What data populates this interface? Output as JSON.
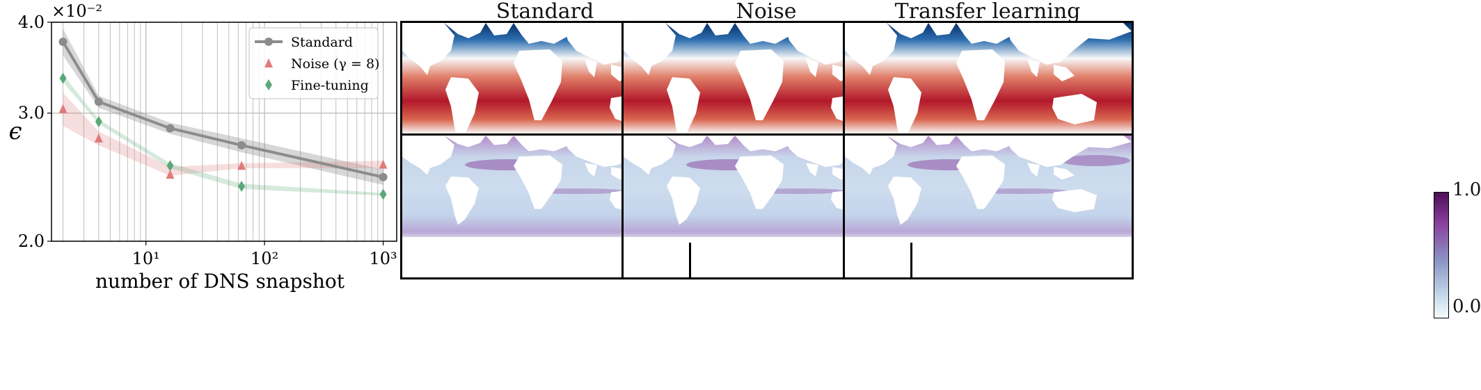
{
  "chart_data": {
    "type": "line",
    "xscale": "log",
    "yscale": "log",
    "xlim": [
      1.6,
      1300
    ],
    "ylim": [
      0.02,
      0.04
    ],
    "xlabel": "number of DNS snapshot",
    "ylabel": "ϵ",
    "y_multiplier_label": "×10⁻²",
    "yticks": [
      {
        "value": 0.02,
        "label": "2.0"
      },
      {
        "value": 0.03,
        "label": "3.0"
      },
      {
        "value": 0.04,
        "label": "4.0"
      }
    ],
    "xticks": [
      {
        "value": 10,
        "label": "10¹"
      },
      {
        "value": 100,
        "label": "10²"
      },
      {
        "value": 1000,
        "label": "10³"
      }
    ],
    "grid": true,
    "legend_position": "top-right",
    "series": [
      {
        "name": "Standard",
        "marker": "circle",
        "color": "#8c8c8c",
        "x": [
          2,
          4,
          16,
          64,
          1000
        ],
        "y": [
          0.0376,
          0.0311,
          0.0286,
          0.0271,
          0.0245
        ],
        "band_low": [
          0.036,
          0.0305,
          0.0281,
          0.0265,
          0.0239
        ],
        "band_high": [
          0.0392,
          0.0317,
          0.0291,
          0.0277,
          0.0251
        ]
      },
      {
        "name": "Noise (γ = 8)",
        "marker": "triangle",
        "color": "#e07b7b",
        "x": [
          2,
          4,
          16,
          64,
          1000
        ],
        "y": [
          0.0304,
          0.0277,
          0.0247,
          0.0254,
          0.0255
        ],
        "band_low": [
          0.0288,
          0.0271,
          0.0246,
          0.0252,
          0.0252
        ],
        "band_high": [
          0.032,
          0.0283,
          0.0253,
          0.0256,
          0.0258
        ]
      },
      {
        "name": "Fine-tuning",
        "marker": "diamond",
        "color": "#5aa878",
        "x": [
          2,
          4,
          16,
          64,
          1000
        ],
        "y": [
          0.0335,
          0.0292,
          0.0254,
          0.0238,
          0.0232
        ],
        "band_low": [
          0.0331,
          0.029,
          0.0252,
          0.0236,
          0.0231
        ],
        "band_high": [
          0.0339,
          0.0294,
          0.0256,
          0.024,
          0.0233
        ]
      }
    ]
  },
  "maps": {
    "titles": [
      "Standard",
      "Noise",
      "Transfer learning"
    ],
    "top_row_colormap": [
      "#08306b",
      "#f7f7f7",
      "#b2182b"
    ],
    "bottom_row_colormap": [
      "#f7fcfd",
      "#88419d"
    ],
    "colorbar": {
      "max_label": "1.0",
      "min_label": "0.0"
    }
  }
}
